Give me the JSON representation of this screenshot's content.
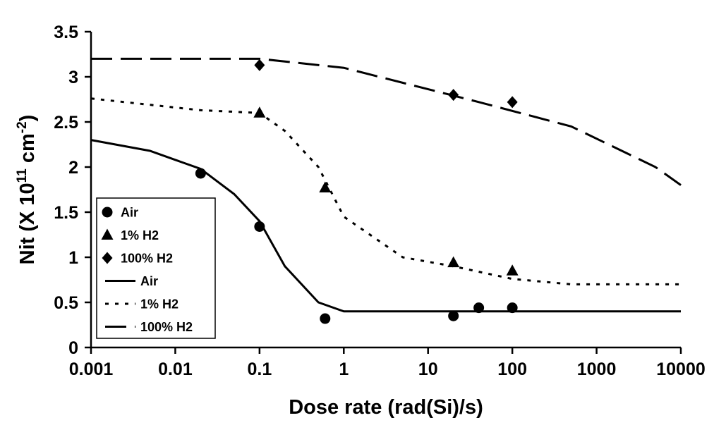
{
  "chart_data": {
    "type": "scatter",
    "xlabel": "Dose rate (rad(Si)/s)",
    "ylabel": {
      "base": "Nit (X 10",
      "exp1": "11",
      "mid": " cm",
      "exp2": "-2",
      "end": ")"
    },
    "xscale": "log",
    "xlim": [
      0.001,
      10000
    ],
    "ylim": [
      0,
      3.5
    ],
    "x_ticks": [
      0.001,
      0.01,
      0.1,
      1,
      10,
      100,
      1000,
      10000
    ],
    "x_tick_labels": [
      "0.001",
      "0.01",
      "0.1",
      "1",
      "10",
      "100",
      "1000",
      "10000"
    ],
    "y_ticks": [
      0,
      0.5,
      1,
      1.5,
      2,
      2.5,
      3,
      3.5
    ],
    "y_tick_labels": [
      "0",
      "0.5",
      "1",
      "1.5",
      "2",
      "2.5",
      "3",
      "3.5"
    ],
    "grid": false,
    "legend_position": "bottom-left",
    "series": [
      {
        "name": "Air",
        "kind": "points",
        "marker": "circle",
        "x": [
          0.02,
          0.1,
          0.6,
          20,
          40,
          100
        ],
        "y": [
          1.93,
          1.34,
          0.32,
          0.35,
          0.44,
          0.44
        ]
      },
      {
        "name": "1% H2",
        "kind": "points",
        "marker": "triangle",
        "x": [
          0.1,
          0.6,
          20,
          100
        ],
        "y": [
          2.6,
          1.77,
          0.94,
          0.85
        ]
      },
      {
        "name": "100% H2",
        "kind": "points",
        "marker": "diamond",
        "x": [
          0.1,
          20,
          100
        ],
        "y": [
          3.13,
          2.8,
          2.72
        ]
      },
      {
        "name": "Air",
        "kind": "line",
        "dash": "solid",
        "x": [
          0.001,
          0.005,
          0.01,
          0.02,
          0.05,
          0.1,
          0.2,
          0.5,
          1,
          10000
        ],
        "y": [
          2.3,
          2.18,
          2.08,
          1.98,
          1.7,
          1.4,
          0.9,
          0.5,
          0.4,
          0.4
        ]
      },
      {
        "name": "1% H2",
        "kind": "line",
        "dash": "dotted",
        "x": [
          0.001,
          0.02,
          0.1,
          0.2,
          0.5,
          1,
          5,
          20,
          100,
          500,
          10000
        ],
        "y": [
          2.76,
          2.63,
          2.6,
          2.4,
          2.0,
          1.45,
          1.0,
          0.9,
          0.76,
          0.7,
          0.7
        ]
      },
      {
        "name": "100% H2",
        "kind": "line",
        "dash": "long-dash",
        "x": [
          0.001,
          0.1,
          1,
          40,
          500,
          5000,
          10000
        ],
        "y": [
          3.2,
          3.2,
          3.1,
          2.72,
          2.45,
          2.0,
          1.8
        ]
      }
    ]
  }
}
